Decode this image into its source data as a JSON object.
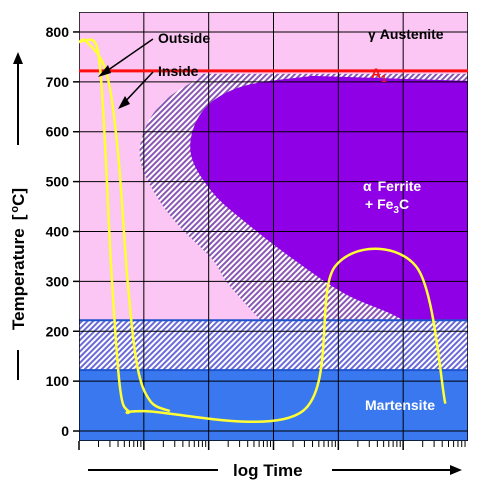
{
  "chart_data": {
    "type": "line",
    "title": "",
    "xlabel": "log Time",
    "ylabel": "Temperature",
    "ylabel_unit_prefix": "[",
    "ylabel_unit_sup": "o",
    "ylabel_unit_suffix": "C]",
    "x_scale": "log",
    "x_decades": 6,
    "xlim": [
      0,
      6
    ],
    "ylim": [
      -20,
      840
    ],
    "yticks": [
      0,
      100,
      200,
      300,
      400,
      500,
      600,
      700,
      800
    ],
    "ytick_labels": [
      "0",
      "100",
      "200",
      "300",
      "400",
      "500",
      "600",
      "700",
      "800"
    ],
    "grid": true,
    "colors": {
      "austenite": "#fbc6f4",
      "ferrite": "#9000e6",
      "martensite": "#3a78f0",
      "martensite_dark": "#1f55cc",
      "a1_line": "#ff1010",
      "cooling_curve": "#ffff33",
      "hatch_dark": "#8a58b4",
      "hatch_light": "#ffffff"
    },
    "a1_temperature": 722,
    "ms_temperature": 222,
    "mf_temperature": 122,
    "regions": {
      "austenite": {
        "symbol": "γ",
        "label": "Austenite"
      },
      "a1": {
        "label": "A",
        "sub": "1"
      },
      "ferrite": {
        "symbol": "α",
        "label": "Ferrite",
        "line2_prefix": "+ Fe",
        "line2_sub": "3",
        "line2_suffix": "C"
      },
      "martensite": {
        "label": "Martensite"
      }
    },
    "transformation_start_curve": [
      [
        1.88,
        710
      ],
      [
        1.3,
        660
      ],
      [
        1.0,
        600
      ],
      [
        0.95,
        540
      ],
      [
        1.2,
        470
      ],
      [
        1.55,
        410
      ],
      [
        2.05,
        345
      ],
      [
        2.3,
        295
      ],
      [
        2.8,
        222
      ]
    ],
    "transformation_finish_curve": [
      [
        3.6,
        712
      ],
      [
        2.5,
        690
      ],
      [
        1.9,
        640
      ],
      [
        1.72,
        560
      ],
      [
        2.05,
        480
      ],
      [
        2.6,
        415
      ],
      [
        3.3,
        345
      ],
      [
        4.1,
        275
      ],
      [
        5.0,
        222
      ],
      [
        5.8,
        140
      ]
    ],
    "series": [
      {
        "name": "Outside",
        "points": [
          [
            0,
            780
          ],
          [
            0.24,
            780
          ],
          [
            0.33,
            720
          ],
          [
            0.4,
            580
          ],
          [
            0.5,
            320
          ],
          [
            0.63,
            90
          ],
          [
            0.76,
            40
          ],
          [
            1.0,
            40
          ],
          [
            3.45,
            40
          ],
          [
            3.95,
            330
          ],
          [
            5.2,
            330
          ],
          [
            5.65,
            55
          ]
        ]
      },
      {
        "name": "Inside",
        "points": [
          [
            0,
            780
          ],
          [
            0.12,
            780
          ],
          [
            0.42,
            720
          ],
          [
            0.6,
            560
          ],
          [
            0.75,
            300
          ],
          [
            0.9,
            130
          ],
          [
            1.1,
            60
          ],
          [
            1.4,
            40
          ]
        ]
      }
    ],
    "annotations": [
      {
        "text": "Outside",
        "points_to": [
          0.22,
          752
        ]
      },
      {
        "text": "Inside",
        "points_to": [
          0.55,
          690
        ]
      }
    ]
  }
}
